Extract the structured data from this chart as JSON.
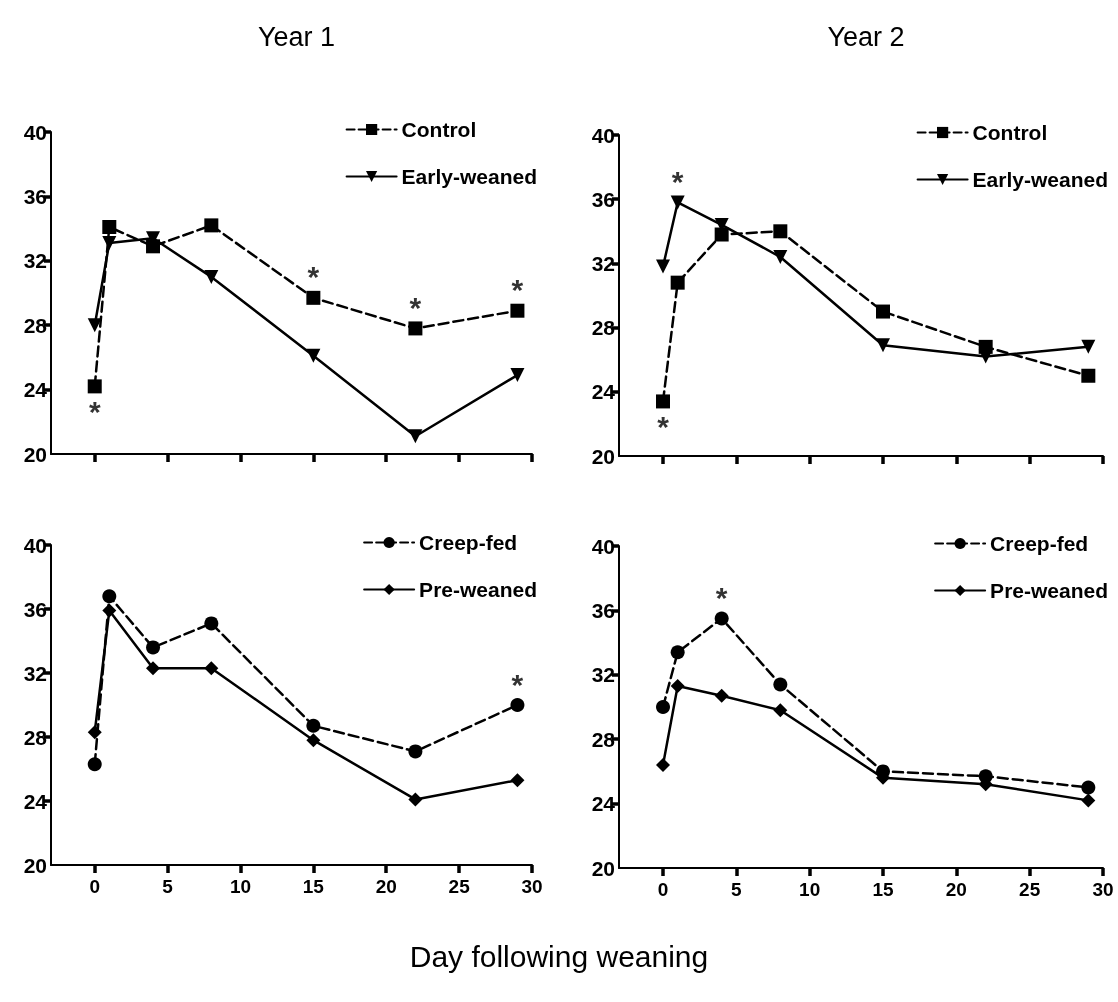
{
  "chart_data": [
    {
      "type": "line",
      "title": "Year 1",
      "x": [
        0,
        1,
        4,
        8,
        15,
        22,
        29
      ],
      "xlim": [
        -3,
        30
      ],
      "xticks": [
        0,
        5,
        10,
        15,
        20,
        25,
        30
      ],
      "ylim": [
        20,
        40
      ],
      "yticks": [
        20,
        24,
        28,
        32,
        36,
        40
      ],
      "tick_labels": "y",
      "grid": false,
      "legend": "top right",
      "series": [
        {
          "name": "Control",
          "color": "#000000",
          "marker": "square",
          "line_style": "dashed",
          "values": [
            24.2,
            34.1,
            32.9,
            34.2,
            29.7,
            27.8,
            28.9
          ]
        },
        {
          "name": "Early-weaned",
          "color": "#000000",
          "marker": "triangle",
          "line_style": "solid",
          "values": [
            28.0,
            33.1,
            33.4,
            31.0,
            26.1,
            21.1,
            24.9
          ]
        }
      ],
      "annotations": [
        {
          "text": "*",
          "x": 0,
          "y": 24.2
        },
        {
          "text": "*",
          "x": 15,
          "y": 29.7
        },
        {
          "text": "*",
          "x": 22,
          "y": 27.8
        },
        {
          "text": "*",
          "x": 29,
          "y": 28.9
        }
      ]
    },
    {
      "type": "line",
      "title": "Year 2",
      "x": [
        0,
        1,
        4,
        8,
        15,
        22,
        29
      ],
      "xlim": [
        -3,
        30
      ],
      "xticks": [
        0,
        5,
        10,
        15,
        20,
        25,
        30
      ],
      "ylim": [
        20,
        40
      ],
      "yticks": [
        20,
        24,
        28,
        32,
        36,
        40
      ],
      "tick_labels": "y",
      "grid": false,
      "legend": "top right",
      "series": [
        {
          "name": "Control",
          "color": "#000000",
          "marker": "square",
          "line_style": "dashed",
          "values": [
            23.4,
            30.8,
            33.8,
            34.0,
            29.0,
            26.8,
            25.0
          ]
        },
        {
          "name": "Early-weaned",
          "color": "#000000",
          "marker": "triangle",
          "line_style": "solid",
          "values": [
            31.8,
            35.8,
            34.4,
            32.4,
            26.9,
            26.2,
            26.8
          ]
        }
      ],
      "annotations": [
        {
          "text": "*",
          "x": 0,
          "y": 23.4
        },
        {
          "text": "*",
          "x": 1,
          "y": 35.8
        }
      ]
    },
    {
      "type": "line",
      "xlabel": "Day following weaning",
      "x": [
        0,
        1,
        4,
        8,
        15,
        22,
        29
      ],
      "xlim": [
        -3,
        30
      ],
      "xticks": [
        0,
        5,
        10,
        15,
        20,
        25,
        30
      ],
      "ylim": [
        20,
        40
      ],
      "yticks": [
        20,
        24,
        28,
        32,
        36,
        40
      ],
      "grid": false,
      "legend": "top right",
      "series": [
        {
          "name": "Creep-fed",
          "color": "#000000",
          "marker": "circle",
          "line_style": "dashed",
          "values": [
            26.3,
            36.8,
            33.6,
            35.1,
            28.7,
            27.1,
            30.0
          ]
        },
        {
          "name": "Pre-weaned",
          "color": "#000000",
          "marker": "diamond",
          "line_style": "solid",
          "values": [
            28.3,
            35.9,
            32.3,
            32.3,
            27.8,
            24.1,
            25.3
          ]
        }
      ],
      "annotations": [
        {
          "text": "*",
          "x": 29,
          "y": 30.0
        }
      ]
    },
    {
      "type": "line",
      "x": [
        0,
        1,
        4,
        8,
        15,
        22,
        29
      ],
      "xlim": [
        -3,
        30
      ],
      "xticks": [
        0,
        5,
        10,
        15,
        20,
        25,
        30
      ],
      "ylim": [
        20,
        40
      ],
      "yticks": [
        20,
        24,
        28,
        32,
        36,
        40
      ],
      "grid": false,
      "legend": "top right",
      "series": [
        {
          "name": "Creep-fed",
          "color": "#000000",
          "marker": "circle",
          "line_style": "dashed",
          "values": [
            30.0,
            33.4,
            35.5,
            31.4,
            26.0,
            25.7,
            25.0
          ]
        },
        {
          "name": "Pre-weaned",
          "color": "#000000",
          "marker": "diamond",
          "line_style": "solid",
          "values": [
            26.4,
            31.3,
            30.7,
            29.8,
            25.6,
            25.2,
            24.2
          ]
        }
      ],
      "annotations": [
        {
          "text": "*",
          "x": 4,
          "y": 35.5
        }
      ]
    }
  ]
}
